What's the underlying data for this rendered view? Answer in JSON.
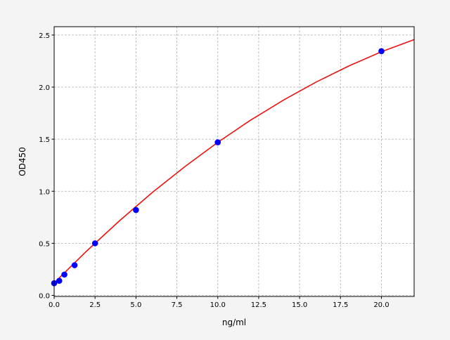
{
  "chart_data": {
    "type": "scatter",
    "title": "",
    "xlabel": "ng/ml",
    "ylabel": "OD450",
    "xlim": [
      0,
      22
    ],
    "ylim": [
      -0.01,
      2.58
    ],
    "xticks": [
      "0.0",
      "2.5",
      "5.0",
      "7.5",
      "10.0",
      "12.5",
      "15.0",
      "17.5",
      "20.0"
    ],
    "yticks": [
      "0.0",
      "0.5",
      "1.0",
      "1.5",
      "2.0",
      "2.5"
    ],
    "grid": true,
    "legend": "none",
    "series": [
      {
        "kind": "points",
        "color": "#0000ff",
        "x": [
          0,
          0.3125,
          0.625,
          1.25,
          2.5,
          5,
          10,
          20
        ],
        "y": [
          0.117,
          0.14,
          0.2,
          0.29,
          0.5,
          0.82,
          1.47,
          2.345
        ]
      },
      {
        "kind": "fit-line",
        "color": "#ee1111",
        "x": [
          0,
          2,
          4,
          6,
          8,
          10,
          12,
          14,
          16,
          18,
          20,
          22
        ],
        "y": [
          0.12,
          0.428,
          0.718,
          0.988,
          1.238,
          1.47,
          1.682,
          1.874,
          2.048,
          2.202,
          2.34,
          2.456
        ]
      }
    ]
  }
}
